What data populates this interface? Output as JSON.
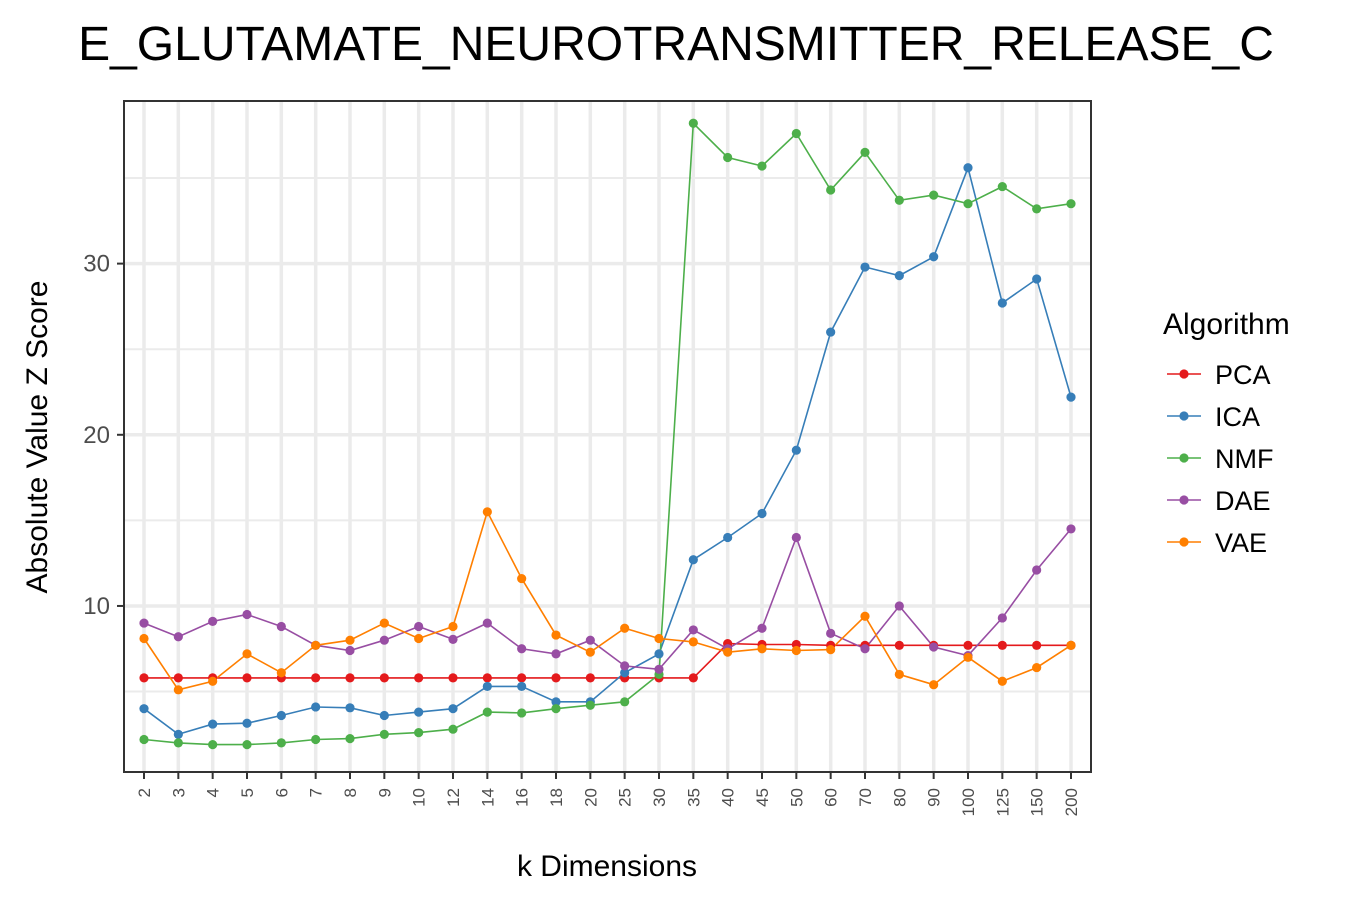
{
  "chart_data": {
    "type": "line",
    "title": "E_GLUTAMATE_NEUROTRANSMITTER_RELEASE_C",
    "xlabel": "k Dimensions",
    "ylabel": "Absolute Value Z Score",
    "categories": [
      "2",
      "3",
      "4",
      "5",
      "6",
      "7",
      "8",
      "9",
      "10",
      "12",
      "14",
      "16",
      "18",
      "20",
      "25",
      "30",
      "35",
      "40",
      "45",
      "50",
      "60",
      "70",
      "80",
      "90",
      "100",
      "125",
      "150",
      "200"
    ],
    "yticks": [
      "10",
      "20",
      "30"
    ],
    "ylim": [
      0.3,
      39.5
    ],
    "grid": true,
    "legend": {
      "title": "Algorithm",
      "position": "right"
    },
    "series": [
      {
        "name": "PCA",
        "color": "#E41A1C",
        "values": [
          5.8,
          5.8,
          5.8,
          5.8,
          5.8,
          5.8,
          5.8,
          5.8,
          5.8,
          5.8,
          5.8,
          5.8,
          5.8,
          5.8,
          5.8,
          5.8,
          5.8,
          7.8,
          7.75,
          7.75,
          7.7,
          7.7,
          7.7,
          7.7,
          7.7,
          7.7,
          7.7,
          7.7
        ]
      },
      {
        "name": "ICA",
        "color": "#377EB8",
        "values": [
          4.0,
          2.5,
          3.1,
          3.15,
          3.6,
          4.1,
          4.05,
          3.6,
          3.8,
          4.0,
          5.3,
          5.3,
          4.4,
          4.4,
          6.1,
          7.2,
          12.7,
          14.0,
          15.4,
          19.1,
          26.0,
          29.8,
          29.3,
          30.4,
          35.6,
          27.7,
          29.1,
          22.2
        ]
      },
      {
        "name": "NMF",
        "color": "#4DAF4A",
        "values": [
          2.2,
          2.0,
          1.9,
          1.9,
          2.0,
          2.2,
          2.25,
          2.5,
          2.6,
          2.8,
          3.8,
          3.75,
          4.0,
          4.2,
          4.4,
          6.0,
          38.2,
          36.2,
          35.7,
          37.6,
          34.3,
          36.5,
          33.7,
          34.0,
          33.5,
          34.5,
          33.2,
          33.5
        ]
      },
      {
        "name": "DAE",
        "color": "#984EA3",
        "values": [
          9.0,
          8.2,
          9.1,
          9.5,
          8.8,
          7.7,
          7.4,
          8.0,
          8.8,
          8.05,
          9.0,
          7.5,
          7.2,
          8.0,
          6.5,
          6.3,
          8.6,
          7.5,
          8.7,
          14.0,
          8.4,
          7.5,
          10.0,
          7.6,
          7.1,
          9.3,
          12.1,
          14.5
        ]
      },
      {
        "name": "VAE",
        "color": "#FF7F00",
        "values": [
          8.1,
          5.1,
          5.6,
          7.2,
          6.1,
          7.7,
          8.0,
          9.0,
          8.1,
          8.8,
          15.5,
          11.6,
          8.3,
          7.3,
          8.7,
          8.1,
          7.9,
          7.3,
          7.5,
          7.4,
          7.45,
          9.4,
          6.0,
          5.4,
          7.0,
          5.6,
          6.4,
          7.7
        ]
      }
    ]
  }
}
